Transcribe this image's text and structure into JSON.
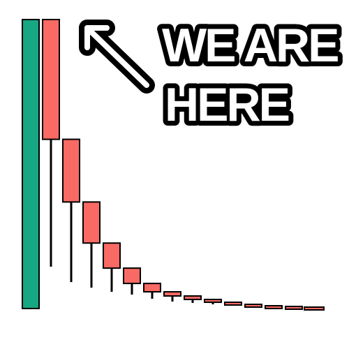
{
  "caption": {
    "line1": "WE ARE",
    "line2": "HERE"
  },
  "arrow": {
    "icon": "arrow-up-left-icon"
  },
  "colors": {
    "bullish": "#17a783",
    "bearish": "#f96a64",
    "outline": "#000000",
    "caption_fill": "#ffffff"
  },
  "chart_data": {
    "type": "candlestick",
    "candles": [
      {
        "index": 1,
        "open": 0,
        "close": 415,
        "high": 415,
        "low": 0,
        "direction": "up"
      },
      {
        "index": 2,
        "open": 415,
        "close": 243,
        "high": 415,
        "low": 60,
        "direction": "down"
      },
      {
        "index": 3,
        "open": 243,
        "close": 153,
        "high": 243,
        "low": 38,
        "direction": "down"
      },
      {
        "index": 4,
        "open": 153,
        "close": 94,
        "high": 153,
        "low": 30,
        "direction": "down"
      },
      {
        "index": 5,
        "open": 94,
        "close": 58,
        "high": 94,
        "low": 24,
        "direction": "down"
      },
      {
        "index": 6,
        "open": 58,
        "close": 36,
        "high": 58,
        "low": 20,
        "direction": "down"
      },
      {
        "index": 7,
        "open": 36,
        "close": 24,
        "high": 36,
        "low": 14,
        "direction": "down"
      },
      {
        "index": 8,
        "open": 24,
        "close": 18,
        "high": 24,
        "low": 10,
        "direction": "down"
      },
      {
        "index": 9,
        "open": 18,
        "close": 13,
        "high": 18,
        "low": 8,
        "direction": "down"
      },
      {
        "index": 10,
        "open": 13,
        "close": 9,
        "high": 13,
        "low": 6,
        "direction": "down"
      },
      {
        "index": 11,
        "open": 9,
        "close": 6,
        "high": 9,
        "low": 4,
        "direction": "down"
      },
      {
        "index": 12,
        "open": 6,
        "close": 4,
        "high": 6,
        "low": 3,
        "direction": "down"
      },
      {
        "index": 13,
        "open": 4,
        "close": 3,
        "high": 4,
        "low": 3,
        "direction": "down"
      },
      {
        "index": 14,
        "open": 3,
        "close": 2,
        "high": 3,
        "low": 2,
        "direction": "down"
      },
      {
        "index": 15,
        "open": 2,
        "close": 1,
        "high": 2,
        "low": 1,
        "direction": "down"
      }
    ]
  }
}
